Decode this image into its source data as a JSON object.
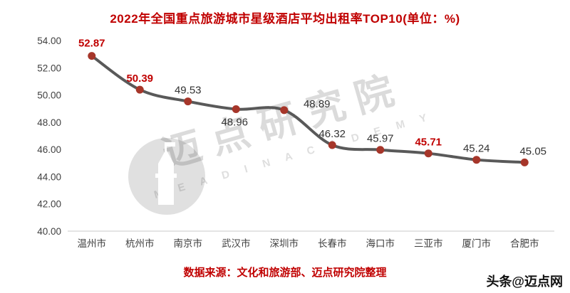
{
  "title": "2022年全国重点旅游城市星级酒店平均出租率TOP10(单位：%)",
  "source_note": "数据来源：文化和旅游部、迈点研究院整理",
  "badge": "头条@迈点网",
  "watermark": {
    "name": "迈点研究院",
    "sub": "M E A D I N   A C A D E M Y"
  },
  "colors": {
    "accent_red": "#c00000",
    "line": "#595959",
    "marker": "#a6362a",
    "axis_text": "#404040",
    "label_text": "#333333",
    "axis_line": "#c9c9c9"
  },
  "chart_data": {
    "type": "line",
    "title": "2022年全国重点旅游城市星级酒店平均出租率TOP10(单位：%)",
    "categories": [
      "温州市",
      "杭州市",
      "南京市",
      "武汉市",
      "深圳市",
      "长春市",
      "海口市",
      "三亚市",
      "厦门市",
      "合肥市"
    ],
    "values": [
      52.87,
      50.39,
      49.53,
      48.96,
      48.89,
      46.32,
      45.97,
      45.71,
      45.24,
      45.05
    ],
    "highlighted_indices": [
      0,
      1,
      7
    ],
    "xlabel": "",
    "ylabel": "",
    "ylim": [
      40,
      54
    ],
    "ytick_step": 2,
    "ytick_format": "2dp",
    "grid": false,
    "legend": false
  }
}
